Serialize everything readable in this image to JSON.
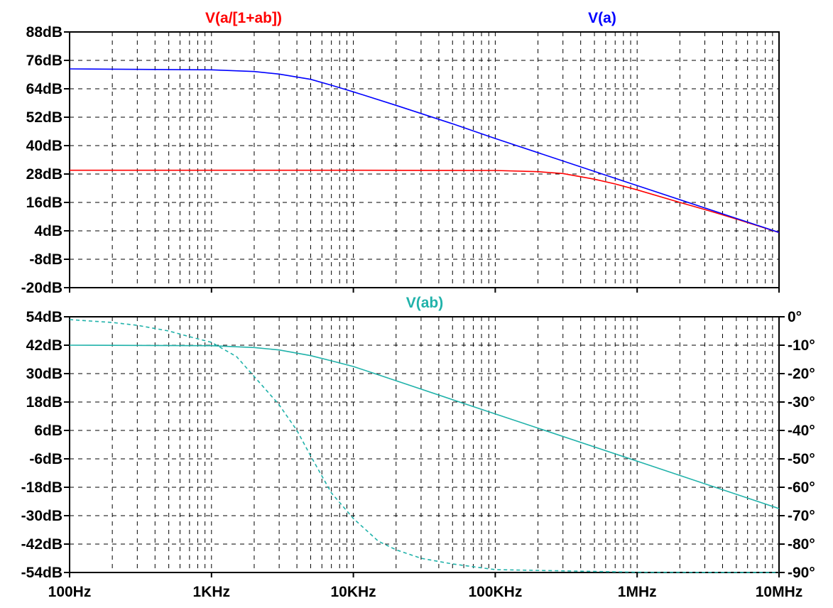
{
  "chart_data": [
    {
      "type": "line",
      "panel": "top",
      "x_scale": "log",
      "xlim_hz": [
        100,
        10000000
      ],
      "ylim_db": [
        -20,
        88
      ],
      "y_ticks": [
        "88dB",
        "76dB",
        "64dB",
        "52dB",
        "40dB",
        "28dB",
        "16dB",
        "4dB",
        "-8dB",
        "-20dB"
      ],
      "y_tick_values": [
        88,
        76,
        64,
        52,
        40,
        28,
        16,
        4,
        -8,
        -20
      ],
      "grid": true,
      "series": [
        {
          "name": "V(a/[1+ab])",
          "color": "#ff0000",
          "x": [
            100,
            1000,
            10000,
            100000,
            200000,
            300000,
            500000,
            700000,
            1000000,
            2000000,
            3000000,
            5000000,
            10000000
          ],
          "y": [
            29.6,
            29.6,
            29.6,
            29.5,
            29.0,
            28.2,
            25.8,
            23.8,
            21.3,
            16.0,
            13.0,
            9.0,
            3.3
          ]
        },
        {
          "name": "V(a)",
          "color": "#0000ff",
          "x": [
            100,
            1000,
            2000,
            3000,
            5000,
            7000,
            10000,
            20000,
            50000,
            100000,
            1000000,
            10000000
          ],
          "y": [
            72.4,
            72.0,
            71.3,
            70.2,
            68.0,
            65.5,
            62.7,
            57.0,
            49.2,
            43.0,
            23.1,
            3.3
          ]
        }
      ]
    },
    {
      "type": "line",
      "panel": "bottom",
      "x_scale": "log",
      "xlim_hz": [
        100,
        10000000
      ],
      "ylim_db": [
        -54,
        54
      ],
      "ylim_deg": [
        -90,
        0
      ],
      "y_ticks": [
        "54dB",
        "42dB",
        "30dB",
        "18dB",
        "6dB",
        "-6dB",
        "-18dB",
        "-30dB",
        "-42dB",
        "-54dB"
      ],
      "y_tick_values": [
        54,
        42,
        30,
        18,
        6,
        -6,
        -18,
        -30,
        -42,
        -54
      ],
      "y2_ticks": [
        "0°",
        "-10°",
        "-20°",
        "-30°",
        "-40°",
        "-50°",
        "-60°",
        "-70°",
        "-80°",
        "-90°"
      ],
      "y2_tick_values": [
        0,
        -10,
        -20,
        -30,
        -40,
        -50,
        -60,
        -70,
        -80,
        -90
      ],
      "grid": true,
      "series": [
        {
          "name": "V(ab)",
          "quantity": "magnitude",
          "color": "#20b2aa",
          "x": [
            100,
            1000,
            2000,
            3000,
            5000,
            7000,
            10000,
            20000,
            50000,
            100000,
            1000000,
            10000000
          ],
          "y": [
            42.0,
            41.8,
            41.0,
            40.0,
            37.6,
            35.4,
            33.0,
            27.0,
            19.0,
            13.0,
            -7.0,
            -27.0
          ]
        },
        {
          "name": "V(ab)",
          "quantity": "phase",
          "style": "dashed",
          "color": "#20b2aa",
          "x": [
            100,
            200,
            300,
            500,
            700,
            1000,
            1500,
            2000,
            3000,
            4000,
            5000,
            7000,
            10000,
            15000,
            20000,
            30000,
            50000,
            100000,
            1000000,
            10000000
          ],
          "y": [
            -1,
            -2,
            -3,
            -5,
            -7,
            -9,
            -14,
            -21,
            -31,
            -40,
            -49,
            -62,
            -71,
            -79,
            -82,
            -85,
            -87,
            -89,
            -89.9,
            -90
          ]
        }
      ]
    }
  ],
  "x_ticks": [
    "100Hz",
    "1KHz",
    "10KHz",
    "100KHz",
    "1MHz",
    "10MHz"
  ],
  "colors": {
    "red": "#ff0000",
    "blue": "#0000ff",
    "teal": "#20b2aa",
    "grid": "#000000"
  }
}
